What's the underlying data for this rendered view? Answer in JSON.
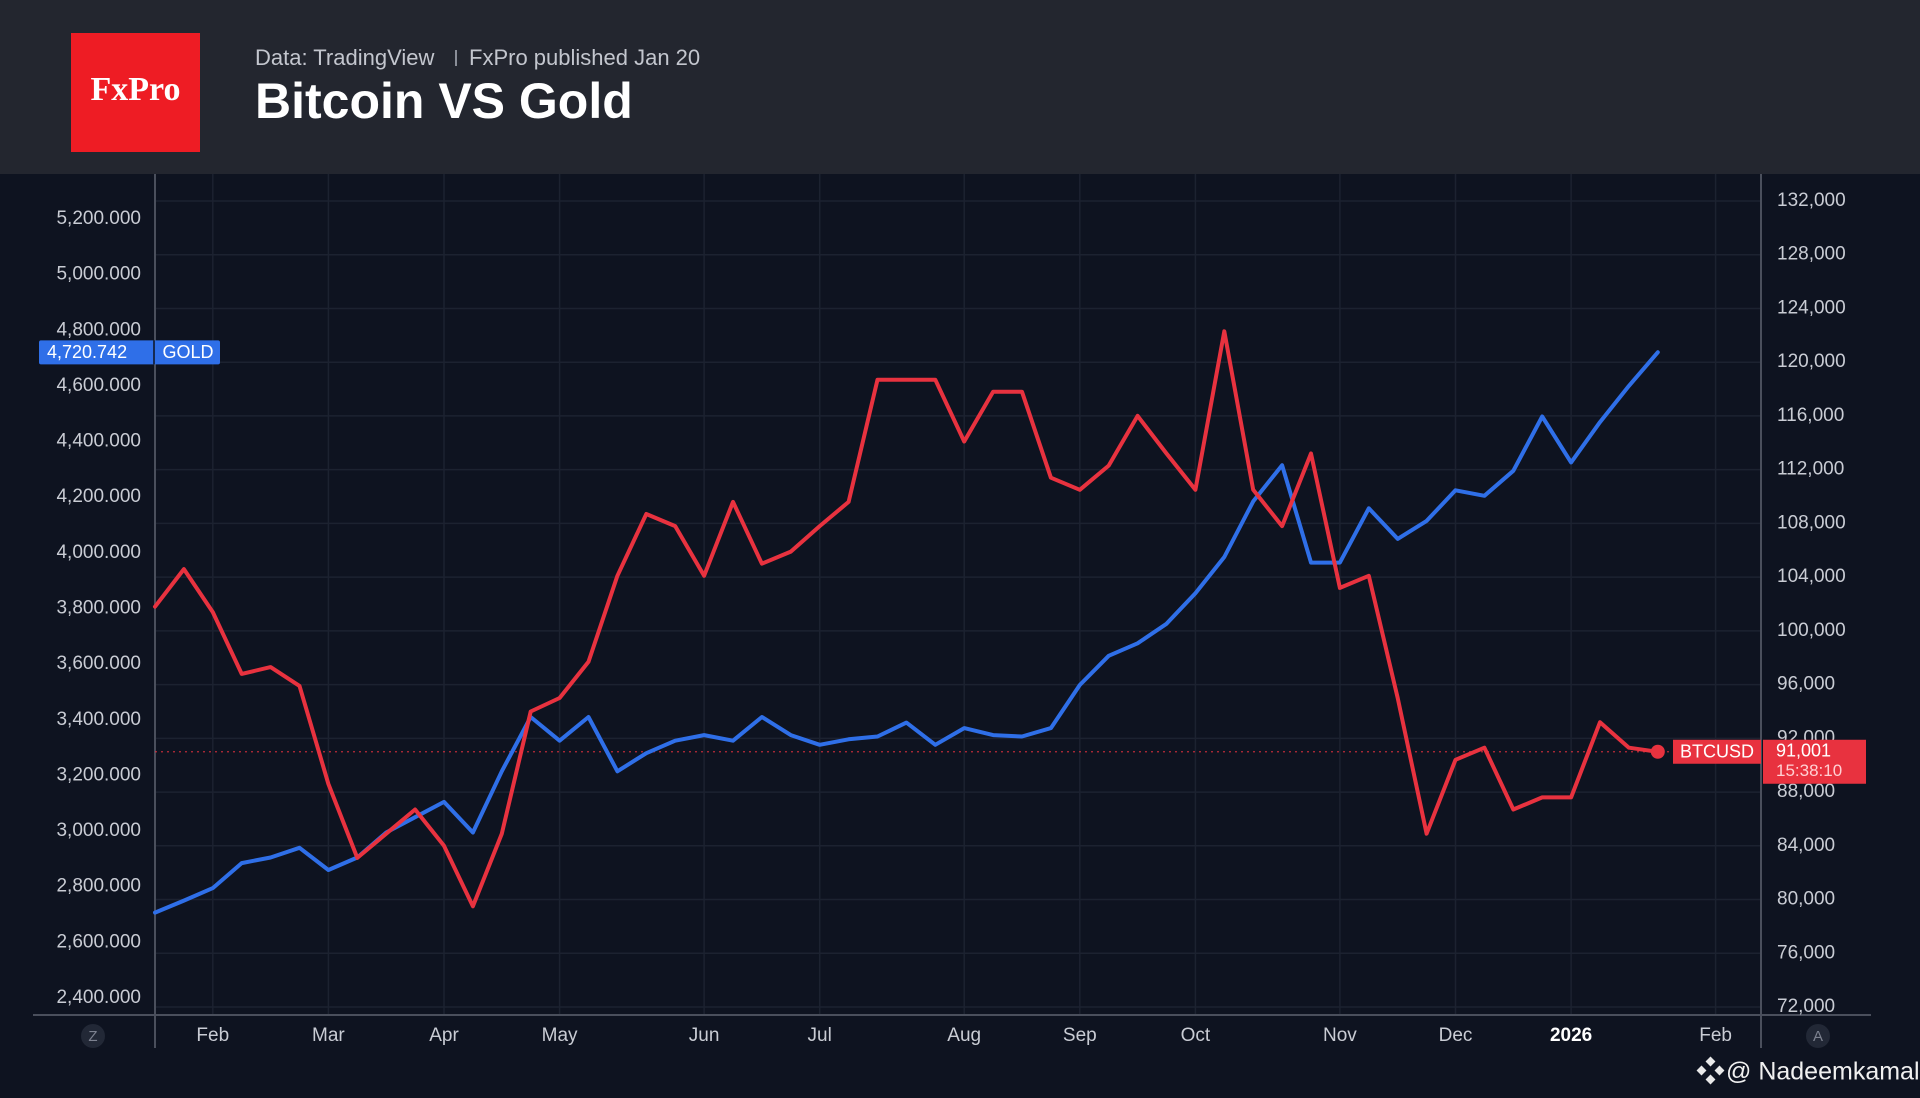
{
  "chart_data": {
    "type": "line",
    "logo": "FxPro",
    "source": "Data: TradingView",
    "publisher": "FxPro published Jan 20",
    "title": "Bitcoin VS Gold",
    "watermark": "@ Nadeemkamal",
    "corner_buttons": [
      "Z",
      "A"
    ],
    "countdown": "15:38:10",
    "grid": true,
    "categories": [
      null,
      null,
      "Feb",
      null,
      null,
      null,
      "Mar",
      null,
      null,
      null,
      "Apr",
      null,
      null,
      null,
      "May",
      null,
      null,
      null,
      null,
      "Jun",
      null,
      null,
      null,
      "Jul",
      null,
      null,
      null,
      null,
      "Aug",
      null,
      null,
      null,
      "Sep",
      null,
      null,
      null,
      "Oct",
      null,
      null,
      null,
      null,
      "Nov",
      null,
      null,
      null,
      "Dec",
      null,
      null,
      null,
      "2026",
      null,
      null,
      null,
      null,
      "Feb",
      null
    ],
    "series": [
      {
        "name": "GOLD",
        "color": "#2f6fe8",
        "axis": "y",
        "values": [
          2707,
          2750,
          2795,
          2885,
          2905,
          2940,
          2860,
          2905,
          2995,
          3050,
          3105,
          2995,
          3215,
          3410,
          3325,
          3410,
          3215,
          3280,
          3325,
          3345,
          3325,
          3410,
          3345,
          3310,
          3330,
          3340,
          3390,
          3310,
          3370,
          3345,
          3340,
          3370,
          3525,
          3630,
          3675,
          3745,
          3855,
          3985,
          4185,
          4315,
          3965,
          3965,
          4160,
          4050,
          4115,
          4225,
          4205,
          4295,
          4490,
          4325,
          4470,
          4600,
          4720.742,
          null,
          null,
          null
        ],
        "value_labels": [
          null,
          null,
          null,
          null,
          null,
          null,
          null,
          null,
          null,
          null,
          null,
          null,
          null,
          null,
          null,
          null,
          null,
          null,
          null,
          null,
          null,
          null,
          null,
          null,
          null,
          null,
          null,
          null,
          null,
          null,
          null,
          null,
          null,
          null,
          null,
          null,
          null,
          null,
          null,
          null,
          null,
          null,
          null,
          null,
          null,
          null,
          null,
          null,
          null,
          null,
          null,
          null,
          "4,720.742",
          null,
          null,
          null
        ]
      },
      {
        "name": "BTCUSD",
        "color": "#e8323f",
        "axis": "y2",
        "values": [
          101800,
          104600,
          101400,
          96800,
          97300,
          95900,
          88600,
          83100,
          84900,
          86700,
          84000,
          79500,
          84900,
          94000,
          95000,
          97700,
          104100,
          108700,
          107800,
          104100,
          109600,
          105000,
          105900,
          107800,
          109600,
          118700,
          118700,
          118700,
          114100,
          117800,
          117800,
          111400,
          110500,
          112300,
          116000,
          113200,
          110500,
          122300,
          110500,
          107800,
          113200,
          103200,
          104100,
          95000,
          84900,
          90400,
          91300,
          86700,
          87600,
          87600,
          93200,
          91300,
          91001,
          null,
          null,
          null
        ],
        "value_labels": [
          null,
          null,
          null,
          null,
          null,
          null,
          null,
          null,
          null,
          null,
          null,
          null,
          null,
          null,
          null,
          null,
          null,
          null,
          null,
          null,
          null,
          null,
          null,
          null,
          null,
          null,
          null,
          null,
          null,
          null,
          null,
          null,
          null,
          null,
          null,
          null,
          null,
          null,
          null,
          null,
          null,
          null,
          null,
          null,
          null,
          null,
          null,
          null,
          null,
          null,
          null,
          null,
          "91,001",
          null,
          null,
          null
        ]
      }
    ],
    "ylim": [
      2400,
      5200
    ],
    "yticks": [
      {
        "value": 2400,
        "label": "2,400.000"
      },
      {
        "value": 2600,
        "label": "2,600.000"
      },
      {
        "value": 2800,
        "label": "2,800.000"
      },
      {
        "value": 3000,
        "label": "3,000.000"
      },
      {
        "value": 3200,
        "label": "3,200.000"
      },
      {
        "value": 3400,
        "label": "3,400.000"
      },
      {
        "value": 3600,
        "label": "3,600.000"
      },
      {
        "value": 3800,
        "label": "3,800.000"
      },
      {
        "value": 4000,
        "label": "4,000.000"
      },
      {
        "value": 4200,
        "label": "4,200.000"
      },
      {
        "value": 4400,
        "label": "4,400.000"
      },
      {
        "value": 4600,
        "label": "4,600.000"
      },
      {
        "value": 4800,
        "label": "4,800.000"
      },
      {
        "value": 5000,
        "label": "5,000.000"
      },
      {
        "value": 5200,
        "label": "5,200.000"
      }
    ],
    "y2lim": [
      72000,
      132000
    ],
    "y2ticks": [
      {
        "value": 72000,
        "label": "72,000"
      },
      {
        "value": 76000,
        "label": "76,000"
      },
      {
        "value": 80000,
        "label": "80,000"
      },
      {
        "value": 84000,
        "label": "84,000"
      },
      {
        "value": 88000,
        "label": "88,000"
      },
      {
        "value": 92000,
        "label": "92,000"
      },
      {
        "value": 96000,
        "label": "96,000"
      },
      {
        "value": 100000,
        "label": "100,000"
      },
      {
        "value": 104000,
        "label": "104,000"
      },
      {
        "value": 108000,
        "label": "108,000"
      },
      {
        "value": 112000,
        "label": "112,000"
      },
      {
        "value": 116000,
        "label": "116,000"
      },
      {
        "value": 120000,
        "label": "120,000"
      },
      {
        "value": 124000,
        "label": "124,000"
      },
      {
        "value": 128000,
        "label": "128,000"
      },
      {
        "value": 132000,
        "label": "132,000"
      }
    ]
  }
}
